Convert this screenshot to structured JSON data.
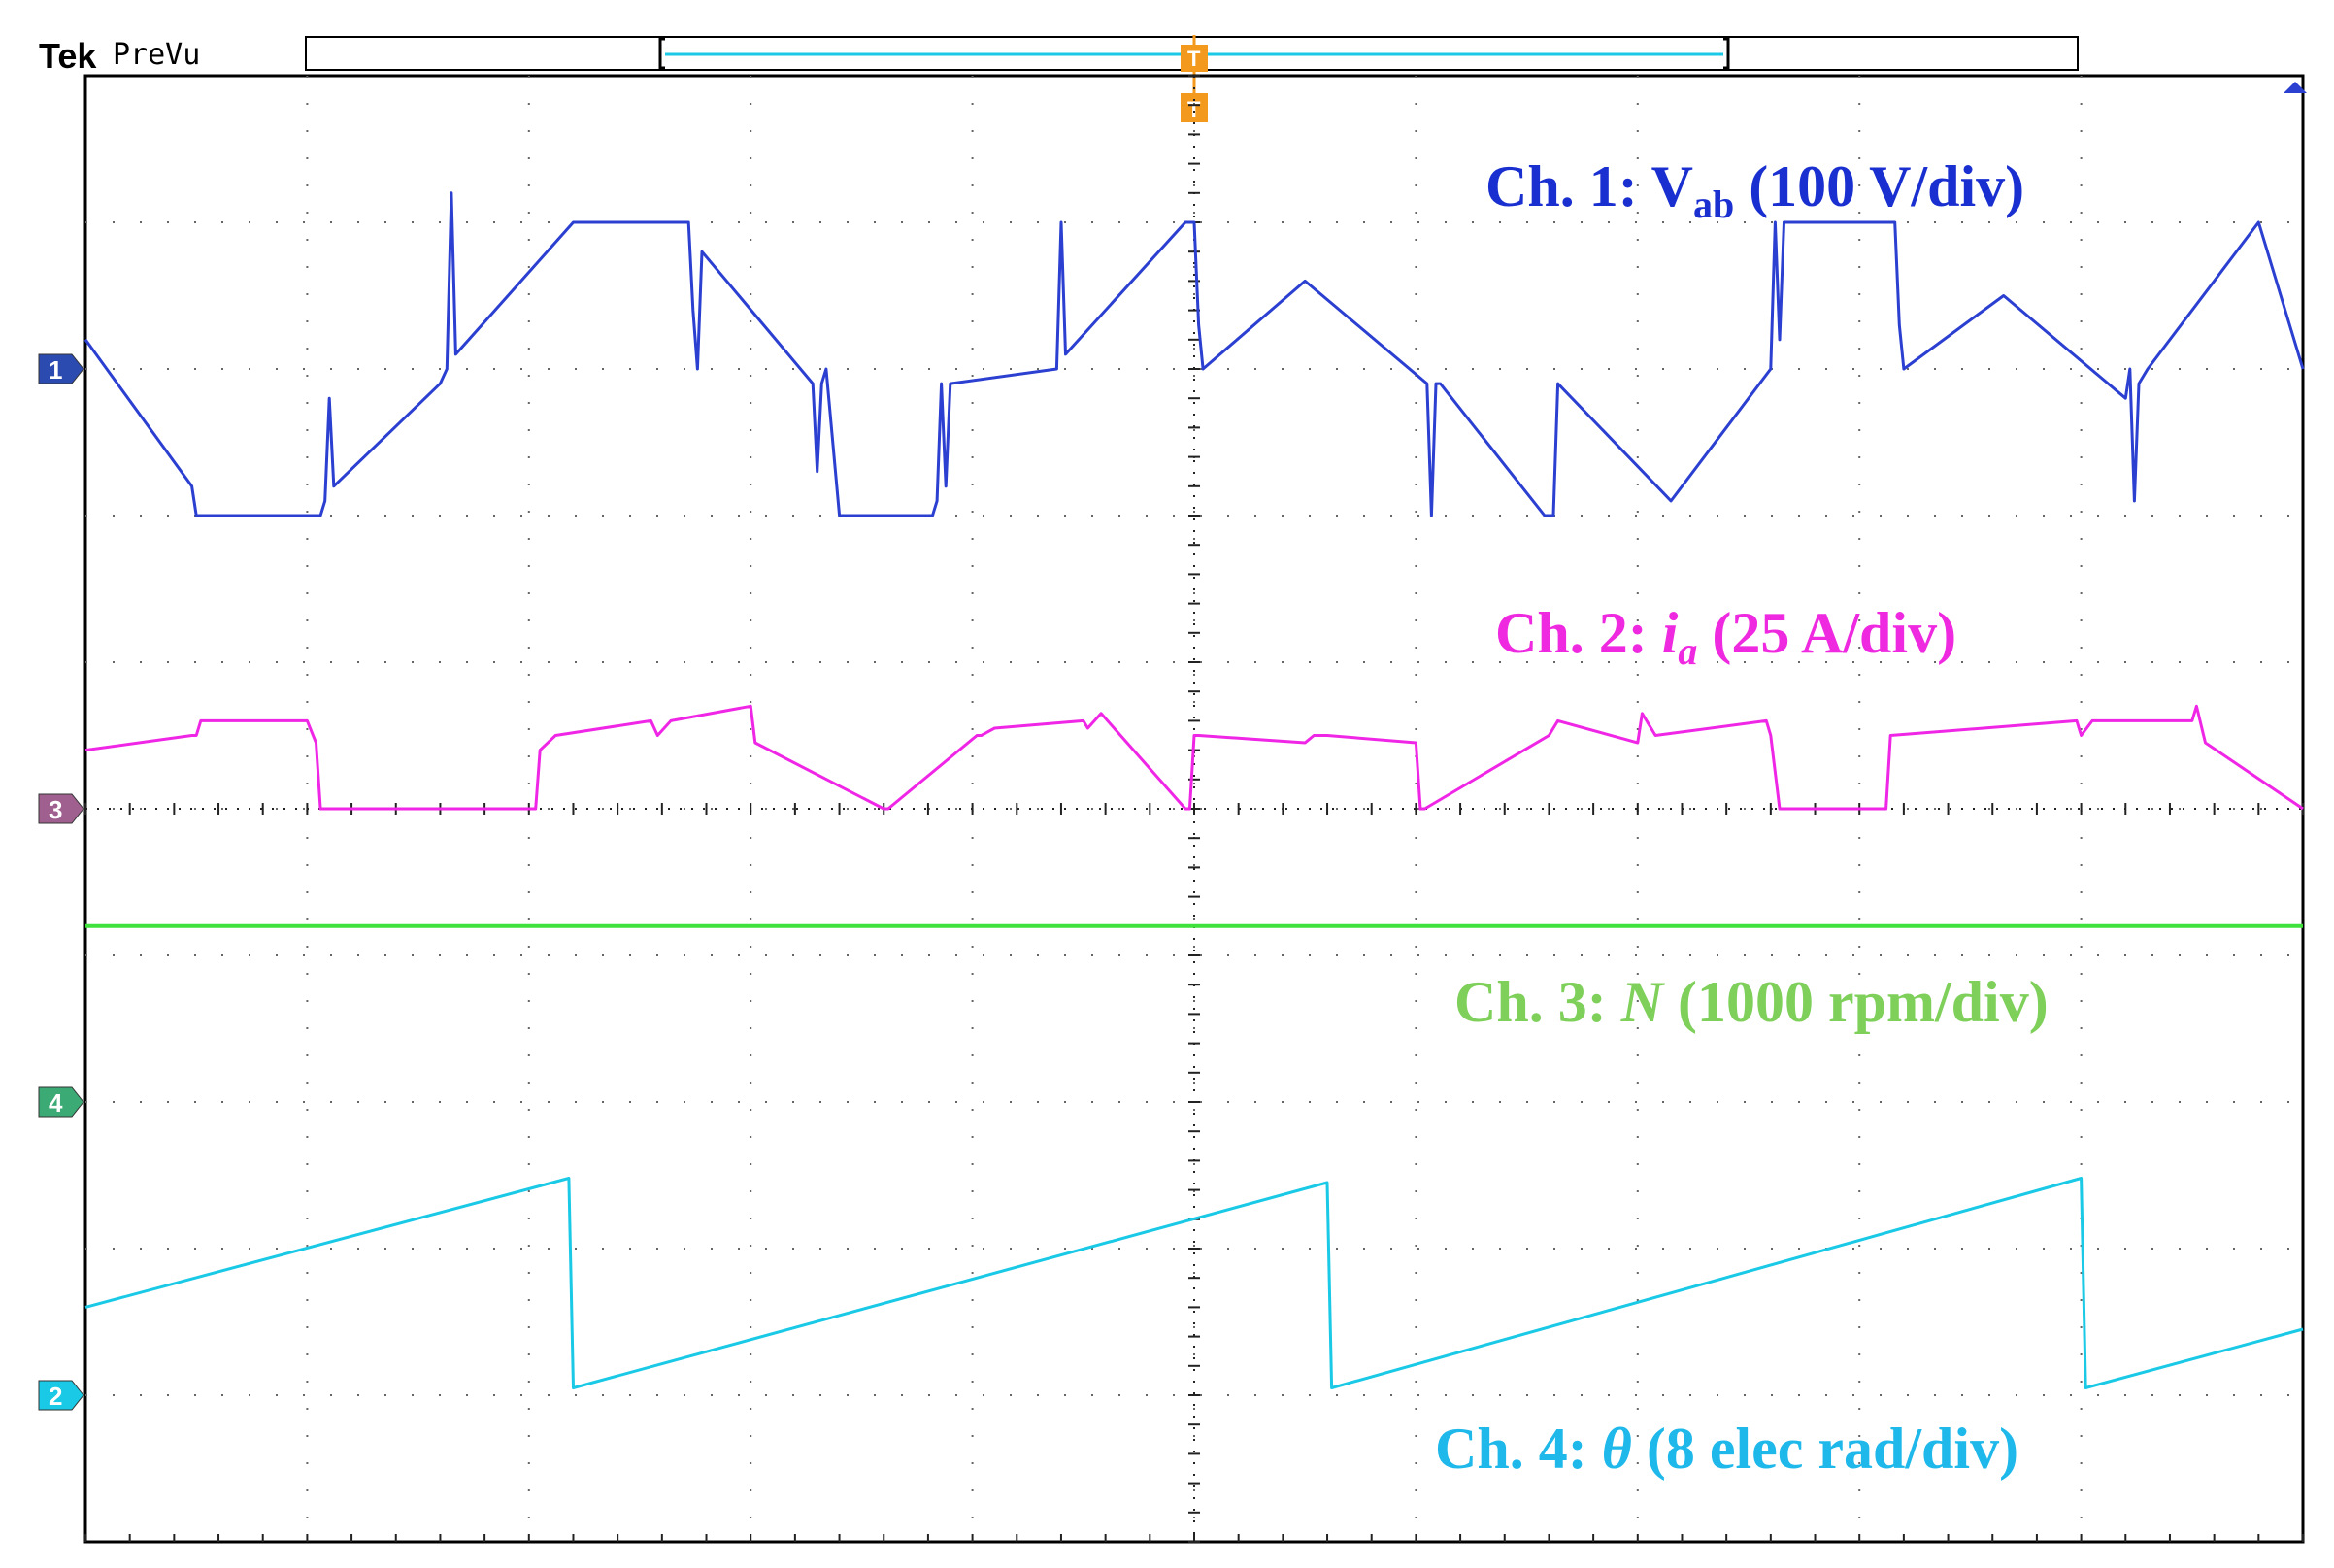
{
  "header": {
    "brand": "Tek",
    "mode": "PreVu"
  },
  "trigger": {
    "label": "T",
    "color": "#f39a1e"
  },
  "colors": {
    "ch1": "#2b3fd1",
    "ch2": "#f026e6",
    "ch3": "#3fe23a",
    "ch4": "#19c9e6",
    "annotation_ch3": "#7ed05a",
    "annotation_ch4": "#1eb8ea",
    "grid": "#666666",
    "frame": "#000000"
  },
  "markers": [
    {
      "label": "1",
      "color": "#2b4bb0",
      "channel": "ch1"
    },
    {
      "label": "3",
      "color": "#a0608f",
      "channel": "ch2"
    },
    {
      "label": "4",
      "color": "#3caa74",
      "channel": "ch3"
    },
    {
      "label": "2",
      "color": "#19c9e6",
      "channel": "ch4"
    }
  ],
  "annotations": {
    "ch1": {
      "prefix": "Ch. 1: V",
      "sub": "ab",
      "suffix": " (100 V/div)"
    },
    "ch2": {
      "prefix": "Ch. 2: ",
      "var": "i",
      "sub": "a",
      "suffix": " (25 A/div)"
    },
    "ch3": {
      "prefix": "Ch. 3: ",
      "var": "N",
      "suffix": " (1000 rpm/div)"
    },
    "ch4": {
      "prefix": "Ch. 4: ",
      "var": "θ",
      "suffix": "  (8 elec rad/div)"
    }
  },
  "chart_data": {
    "type": "line",
    "grid": true,
    "x_divisions": 10,
    "y_divisions": 10,
    "xlim": [
      0,
      10
    ],
    "ylim": [
      0,
      10
    ],
    "series": [
      {
        "channel": "ch1",
        "x": [
          0,
          0.48,
          0.5,
          1.06,
          1.08,
          1.1,
          1.12,
          1.6,
          1.63,
          1.65,
          1.67,
          2.2,
          2.72,
          2.74,
          2.76,
          2.78,
          3.28,
          3.3,
          3.32,
          3.34,
          3.4,
          3.82,
          3.84,
          3.86,
          3.88,
          3.9,
          4.38,
          4.4,
          4.42,
          4.96,
          5.0,
          5.02,
          5.04,
          5.5,
          6.05,
          6.07,
          6.09,
          6.11,
          6.58,
          6.6,
          6.62,
          6.64,
          7.15,
          7.6,
          7.62,
          7.64,
          7.66,
          8.14,
          8.16,
          8.18,
          8.2,
          8.65,
          9.2,
          9.22,
          9.24,
          9.26,
          9.3,
          9.8,
          10.0
        ],
        "y": [
          8.2,
          7.2,
          7.0,
          7.0,
          7.1,
          7.8,
          7.2,
          7.9,
          8.0,
          9.2,
          8.1,
          9.0,
          9.0,
          8.4,
          8.0,
          8.8,
          7.9,
          7.3,
          7.9,
          8.0,
          7.0,
          7.0,
          7.1,
          7.9,
          7.2,
          7.9,
          8.0,
          9.0,
          8.1,
          9.0,
          9.0,
          8.3,
          8.0,
          8.6,
          7.9,
          7.0,
          7.9,
          7.9,
          7.0,
          7.0,
          7.0,
          7.9,
          7.1,
          8.0,
          9.0,
          8.2,
          9.0,
          9.0,
          9.0,
          8.3,
          8.0,
          8.5,
          7.8,
          8.0,
          7.1,
          7.9,
          8.0,
          9.0,
          8.0
        ]
      },
      {
        "channel": "ch2",
        "x": [
          0,
          0.48,
          0.5,
          0.52,
          1.0,
          1.04,
          1.06,
          2.03,
          2.05,
          2.12,
          2.55,
          2.58,
          2.64,
          3.0,
          3.02,
          3.6,
          3.62,
          4.02,
          4.04,
          4.1,
          4.5,
          4.52,
          4.58,
          4.96,
          4.98,
          5.0,
          5.02,
          5.5,
          5.54,
          5.6,
          6.0,
          6.02,
          6.04,
          6.6,
          6.64,
          7.0,
          7.02,
          7.08,
          7.58,
          7.6,
          7.64,
          8.1,
          8.12,
          8.14,
          8.98,
          9.0,
          9.05,
          9.5,
          9.52,
          9.56,
          10.0
        ],
        "y": [
          5.4,
          5.5,
          5.5,
          5.6,
          5.6,
          5.45,
          5.0,
          5.0,
          5.4,
          5.5,
          5.6,
          5.5,
          5.6,
          5.7,
          5.45,
          5.0,
          5.0,
          5.5,
          5.5,
          5.55,
          5.6,
          5.55,
          5.65,
          5.0,
          5.0,
          5.5,
          5.5,
          5.45,
          5.5,
          5.5,
          5.45,
          5.0,
          5.0,
          5.5,
          5.6,
          5.45,
          5.65,
          5.5,
          5.6,
          5.5,
          5.0,
          5.0,
          5.0,
          5.5,
          5.6,
          5.5,
          5.6,
          5.6,
          5.7,
          5.45,
          5.0
        ]
      },
      {
        "channel": "ch3",
        "x": [
          0,
          10
        ],
        "y": [
          4.2,
          4.2
        ]
      },
      {
        "channel": "ch4",
        "x": [
          0,
          2.18,
          2.2,
          5.6,
          5.62,
          9.0,
          9.02,
          10.0
        ],
        "y": [
          1.6,
          2.48,
          1.05,
          2.45,
          1.05,
          2.48,
          1.05,
          1.45
        ]
      }
    ]
  }
}
